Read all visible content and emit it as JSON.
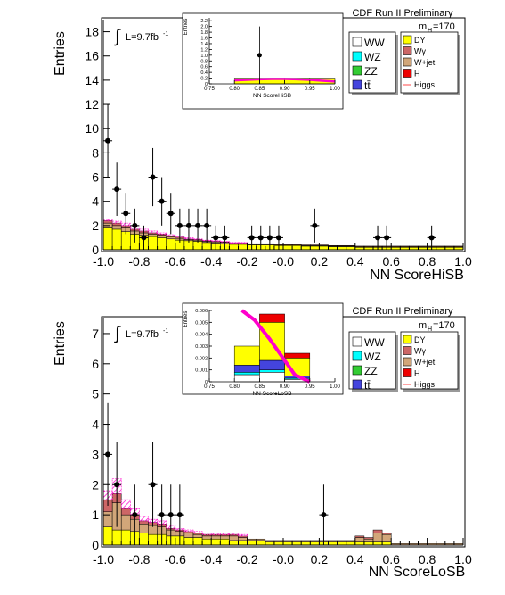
{
  "chart_data": [
    {
      "type": "bar",
      "title": "CDF Run II Preliminary",
      "xlabel": "NN ScoreHiSB",
      "ylabel": "Entries",
      "xlim": [
        -1.0,
        1.0
      ],
      "ylim": [
        0,
        19
      ],
      "xticks": [
        "-1.0",
        "-0.8",
        "-0.6",
        "-0.4",
        "-0.2",
        "-0.0",
        "0.2",
        "0.4",
        "0.6",
        "0.8",
        "1.0"
      ],
      "yticks": [
        "0",
        "2",
        "4",
        "6",
        "8",
        "10",
        "12",
        "14",
        "16",
        "18"
      ],
      "lumi_label": "L=9.7fb",
      "lumi_sup": "-1",
      "mass_label": "m",
      "mass_sub": "H",
      "mass_value": "=170",
      "legend_left": [
        {
          "name": "WW",
          "color": "#ffffff"
        },
        {
          "name": "WZ",
          "color": "#00ffff"
        },
        {
          "name": "ZZ",
          "color": "#33cc33"
        },
        {
          "name": "tt̄",
          "color": "#4444dd"
        }
      ],
      "legend_right": [
        {
          "name": "DY",
          "color": "#ffff00"
        },
        {
          "name": "Wγ",
          "color": "#cc6666"
        },
        {
          "name": "W+jet",
          "color": "#d2a679"
        },
        {
          "name": "H",
          "color": "#ee0000"
        },
        {
          "name": "Higgs",
          "color": "#ff6666"
        }
      ],
      "bin_edges": [
        -1.0,
        -0.95,
        -0.9,
        -0.85,
        -0.8,
        -0.75,
        -0.7,
        -0.65,
        -0.6,
        -0.55,
        -0.5,
        -0.45,
        -0.4,
        -0.35,
        -0.3,
        -0.25,
        -0.2,
        -0.15,
        -0.1,
        -0.05,
        0.0,
        0.05,
        0.1,
        0.15,
        0.2,
        0.25,
        0.3,
        0.35,
        0.4,
        0.45,
        0.5,
        0.55,
        0.6,
        0.65,
        0.7,
        0.75,
        0.8,
        0.85,
        0.9,
        0.95,
        1.0
      ],
      "stack": [
        {
          "name": "DY",
          "color": "#ffff00",
          "values": [
            1.8,
            1.7,
            1.5,
            1.3,
            1.2,
            1.1,
            1.0,
            0.9,
            0.8,
            0.75,
            0.7,
            0.6,
            0.55,
            0.5,
            0.45,
            0.45,
            0.4,
            0.4,
            0.4,
            0.35,
            0.35,
            0.35,
            0.3,
            0.3,
            0.3,
            0.25,
            0.25,
            0.25,
            0.2,
            0.2,
            0.2,
            0.2,
            0.2,
            0.2,
            0.2,
            0.2,
            0.2,
            0.2,
            0.2,
            0.2
          ]
        },
        {
          "name": "W+jet",
          "color": "#d2a679",
          "values": [
            0.4,
            0.3,
            0.3,
            0.25,
            0.2,
            0.2,
            0.2,
            0.15,
            0.15,
            0.1,
            0.1,
            0.1,
            0.1,
            0.1,
            0.05,
            0.05,
            0.05,
            0.05,
            0.05,
            0.05,
            0.05,
            0.05,
            0.05,
            0.05,
            0.05,
            0.05,
            0.05,
            0.05,
            0.05,
            0.05,
            0.05,
            0.05,
            0.05,
            0.05,
            0.05,
            0.05,
            0.05,
            0.05,
            0.05,
            0.05
          ]
        },
        {
          "name": "Wγ",
          "color": "#cc6666",
          "values": [
            0.2,
            0.2,
            0.2,
            0.15,
            0.15,
            0.1,
            0.1,
            0.1,
            0.1,
            0.05,
            0.05,
            0.05,
            0.05,
            0.05,
            0.05,
            0.05,
            0.05,
            0.05,
            0.05,
            0.05,
            0.05,
            0.05,
            0.05,
            0.05,
            0.05,
            0.05,
            0.05,
            0.05,
            0.05,
            0.05,
            0.05,
            0.05,
            0.05,
            0.05,
            0.05,
            0.05,
            0.05,
            0.05,
            0.05,
            0.05
          ]
        }
      ],
      "signal": {
        "name": "Higgs",
        "color": "#ff00cc",
        "values": [
          0.1,
          0.15,
          0.2,
          0.2,
          0.15,
          0.15,
          0.1,
          0.1,
          0.1,
          0.1,
          0.05,
          0.05,
          0.05,
          0.05,
          0.05,
          0.05,
          0.0,
          0.0,
          0.0,
          0.0,
          0.0,
          0.0,
          0.0,
          0.0,
          0.0,
          0.0,
          0.0,
          0.0,
          0.0,
          0.0,
          0.0,
          0.0,
          0.0,
          0.0,
          0.0,
          0.0,
          0.0,
          0.0,
          0.0,
          0.0
        ]
      },
      "points": [
        {
          "x": -0.975,
          "y": 9,
          "err": 3.0
        },
        {
          "x": -0.925,
          "y": 5,
          "err": 2.2
        },
        {
          "x": -0.875,
          "y": 3,
          "err": 1.7
        },
        {
          "x": -0.825,
          "y": 2,
          "err": 1.4
        },
        {
          "x": -0.775,
          "y": 1,
          "err": 1.0
        },
        {
          "x": -0.725,
          "y": 6,
          "err": 2.4
        },
        {
          "x": -0.675,
          "y": 4,
          "err": 2.0
        },
        {
          "x": -0.625,
          "y": 3,
          "err": 1.7
        },
        {
          "x": -0.575,
          "y": 2,
          "err": 1.4
        },
        {
          "x": -0.525,
          "y": 2,
          "err": 1.4
        },
        {
          "x": -0.475,
          "y": 2,
          "err": 1.4
        },
        {
          "x": -0.425,
          "y": 2,
          "err": 1.4
        },
        {
          "x": -0.375,
          "y": 1,
          "err": 1.0
        },
        {
          "x": -0.325,
          "y": 1,
          "err": 1.0
        },
        {
          "x": -0.175,
          "y": 1,
          "err": 1.0
        },
        {
          "x": -0.125,
          "y": 1,
          "err": 1.0
        },
        {
          "x": -0.075,
          "y": 1,
          "err": 1.0
        },
        {
          "x": -0.025,
          "y": 1,
          "err": 1.0
        },
        {
          "x": 0.175,
          "y": 2,
          "err": 1.4
        },
        {
          "x": 0.525,
          "y": 1,
          "err": 1.0
        },
        {
          "x": 0.575,
          "y": 1,
          "err": 1.0
        },
        {
          "x": 0.825,
          "y": 1,
          "err": 1.0
        }
      ],
      "inset": {
        "xlabel": "NN ScoreHiSB",
        "ylabel": "Entries",
        "xlim": [
          0.75,
          1.0
        ],
        "ylim": [
          0,
          2.3
        ],
        "xticks": [
          "0.75",
          "0.80",
          "0.85",
          "0.90",
          "0.95",
          "1.00"
        ],
        "yticks": [
          "0",
          "0.2",
          "0.4",
          "0.6",
          "0.8",
          "1.0",
          "1.2",
          "1.4",
          "1.6",
          "1.8",
          "2.0",
          "2.2"
        ],
        "bin_edges": [
          0.75,
          0.8,
          0.85,
          0.9,
          0.95,
          1.0
        ],
        "stack": [
          {
            "name": "DY",
            "color": "#ffff00",
            "values": [
              0.0,
              0.2,
              0.2,
              0.2,
              0.2
            ]
          }
        ],
        "signal_curve": {
          "x": [
            0.8,
            0.825,
            0.85,
            0.875,
            0.9,
            0.925,
            0.95,
            0.975,
            1.0
          ],
          "y": [
            0.12,
            0.14,
            0.16,
            0.17,
            0.17,
            0.16,
            0.14,
            0.11,
            0.08
          ]
        },
        "points": [
          {
            "x": 0.85,
            "y": 1.0,
            "err": 1.0
          }
        ]
      }
    },
    {
      "type": "bar",
      "title": "CDF Run II Preliminary",
      "xlabel": "NN ScoreLoSB",
      "ylabel": "Entries",
      "xlim": [
        -1.0,
        1.0
      ],
      "ylim": [
        0,
        7.5
      ],
      "xticks": [
        "-1.0",
        "-0.8",
        "-0.6",
        "-0.4",
        "-0.2",
        "-0.0",
        "0.2",
        "0.4",
        "0.6",
        "0.8",
        "1.0"
      ],
      "yticks": [
        "0",
        "1",
        "2",
        "3",
        "4",
        "5",
        "6",
        "7"
      ],
      "lumi_label": "L=9.7fb",
      "lumi_sup": "-1",
      "mass_label": "m",
      "mass_sub": "H",
      "mass_value": "=170",
      "legend_left": [
        {
          "name": "WW",
          "color": "#ffffff"
        },
        {
          "name": "WZ",
          "color": "#00ffff"
        },
        {
          "name": "ZZ",
          "color": "#33cc33"
        },
        {
          "name": "tt̄",
          "color": "#4444dd"
        }
      ],
      "legend_right": [
        {
          "name": "DY",
          "color": "#ffff00"
        },
        {
          "name": "Wγ",
          "color": "#cc6666"
        },
        {
          "name": "W+jet",
          "color": "#d2a679"
        },
        {
          "name": "H",
          "color": "#ee0000"
        },
        {
          "name": "Higgs",
          "color": "#ff6666"
        }
      ],
      "bin_edges": [
        -1.0,
        -0.95,
        -0.9,
        -0.85,
        -0.8,
        -0.75,
        -0.7,
        -0.65,
        -0.6,
        -0.55,
        -0.5,
        -0.45,
        -0.4,
        -0.35,
        -0.3,
        -0.25,
        -0.2,
        -0.15,
        -0.1,
        -0.05,
        0.0,
        0.05,
        0.1,
        0.15,
        0.2,
        0.25,
        0.3,
        0.35,
        0.4,
        0.45,
        0.5,
        0.55,
        0.6,
        0.65,
        0.7,
        0.75,
        0.8,
        0.85,
        0.9,
        0.95,
        1.0
      ],
      "stack": [
        {
          "name": "DY",
          "color": "#ffff00",
          "values": [
            0.6,
            0.5,
            0.5,
            0.45,
            0.4,
            0.35,
            0.35,
            0.3,
            0.3,
            0.25,
            0.25,
            0.2,
            0.2,
            0.2,
            0.15,
            0.15,
            0.15,
            0.15,
            0.1,
            0.1,
            0.1,
            0.1,
            0.1,
            0.1,
            0.1,
            0.1,
            0.1,
            0.1,
            0.1,
            0.1,
            0.1,
            0.1,
            0.0,
            0.0,
            0.0,
            0.0,
            0.0,
            0.0,
            0.0,
            0.0
          ]
        },
        {
          "name": "W+jet",
          "color": "#d2a679",
          "values": [
            0.5,
            0.9,
            0.5,
            0.4,
            0.3,
            0.3,
            0.25,
            0.2,
            0.15,
            0.15,
            0.1,
            0.1,
            0.1,
            0.1,
            0.15,
            0.1,
            0.05,
            0.05,
            0.05,
            0.05,
            0.05,
            0.05,
            0.05,
            0.05,
            0.05,
            0.05,
            0.05,
            0.05,
            0.15,
            0.1,
            0.3,
            0.25,
            0.05,
            0.05,
            0.05,
            0.05,
            0.05,
            0.05,
            0.05,
            0.05
          ]
        },
        {
          "name": "Wγ",
          "color": "#cc6666",
          "values": [
            0.4,
            0.3,
            0.2,
            0.15,
            0.1,
            0.1,
            0.1,
            0.05,
            0.05,
            0.05,
            0.05,
            0.05,
            0.05,
            0.05,
            0.05,
            0.05,
            0.0,
            0.0,
            0.0,
            0.0,
            0.0,
            0.0,
            0.0,
            0.0,
            0.0,
            0.0,
            0.0,
            0.0,
            0.05,
            0.05,
            0.1,
            0.05,
            0.0,
            0.0,
            0.0,
            0.0,
            0.0,
            0.0,
            0.0,
            0.0
          ]
        }
      ],
      "signal": {
        "name": "Higgs",
        "color": "#ff00cc",
        "values": [
          0.3,
          0.5,
          0.3,
          0.2,
          0.15,
          0.1,
          0.1,
          0.1,
          0.05,
          0.05,
          0.05,
          0.05,
          0.05,
          0.05,
          0.05,
          0.05,
          0.0,
          0.0,
          0.0,
          0.0,
          0.0,
          0.0,
          0.0,
          0.0,
          0.0,
          0.0,
          0.0,
          0.0,
          0.0,
          0.0,
          0.0,
          0.0,
          0.0,
          0.0,
          0.0,
          0.0,
          0.0,
          0.0,
          0.0,
          0.0
        ]
      },
      "points": [
        {
          "x": -0.975,
          "y": 3,
          "err": 1.7
        },
        {
          "x": -0.925,
          "y": 2,
          "err": 1.4
        },
        {
          "x": -0.825,
          "y": 1,
          "err": 1.0
        },
        {
          "x": -0.725,
          "y": 2,
          "err": 1.4
        },
        {
          "x": -0.675,
          "y": 1,
          "err": 1.0
        },
        {
          "x": -0.625,
          "y": 1,
          "err": 1.0
        },
        {
          "x": -0.575,
          "y": 1,
          "err": 1.0
        },
        {
          "x": 0.225,
          "y": 1,
          "err": 1.0
        }
      ],
      "inset": {
        "xlabel": "NN ScoreLoSB",
        "ylabel": "Entries",
        "xlim": [
          0.75,
          1.0
        ],
        "ylim": [
          0,
          0.006
        ],
        "xticks": [
          "0.75",
          "0.80",
          "0.85",
          "0.90",
          "0.95",
          "1.00"
        ],
        "yticks": [
          "0",
          "0.001",
          "0.002",
          "0.003",
          "0.004",
          "0.005",
          "0.006"
        ],
        "bin_edges": [
          0.75,
          0.8,
          0.85,
          0.9,
          0.95,
          1.0
        ],
        "stack": [
          {
            "name": "WW",
            "color": "#ffffff",
            "values": [
              0.0,
              0.0006,
              0.0008,
              0.0002,
              0.0
            ]
          },
          {
            "name": "WZ",
            "color": "#00ffff",
            "values": [
              0.0,
              0.0002,
              0.0002,
              0.0001,
              0.0
            ]
          },
          {
            "name": "tt̄",
            "color": "#4444dd",
            "values": [
              0.0,
              0.0006,
              0.0008,
              0.0002,
              0.0
            ]
          },
          {
            "name": "DY",
            "color": "#ffff00",
            "values": [
              0.0,
              0.0016,
              0.0032,
              0.0015,
              0.0
            ]
          },
          {
            "name": "H",
            "color": "#ee0000",
            "values": [
              0.0,
              0.0,
              0.0007,
              0.0004,
              0.0
            ]
          }
        ],
        "signal_curve": {
          "x": [
            0.815,
            0.84,
            0.87,
            0.9,
            0.92,
            0.95
          ],
          "y": [
            0.006,
            0.0052,
            0.0036,
            0.0018,
            0.0006,
            0.0
          ]
        },
        "points": []
      }
    }
  ]
}
